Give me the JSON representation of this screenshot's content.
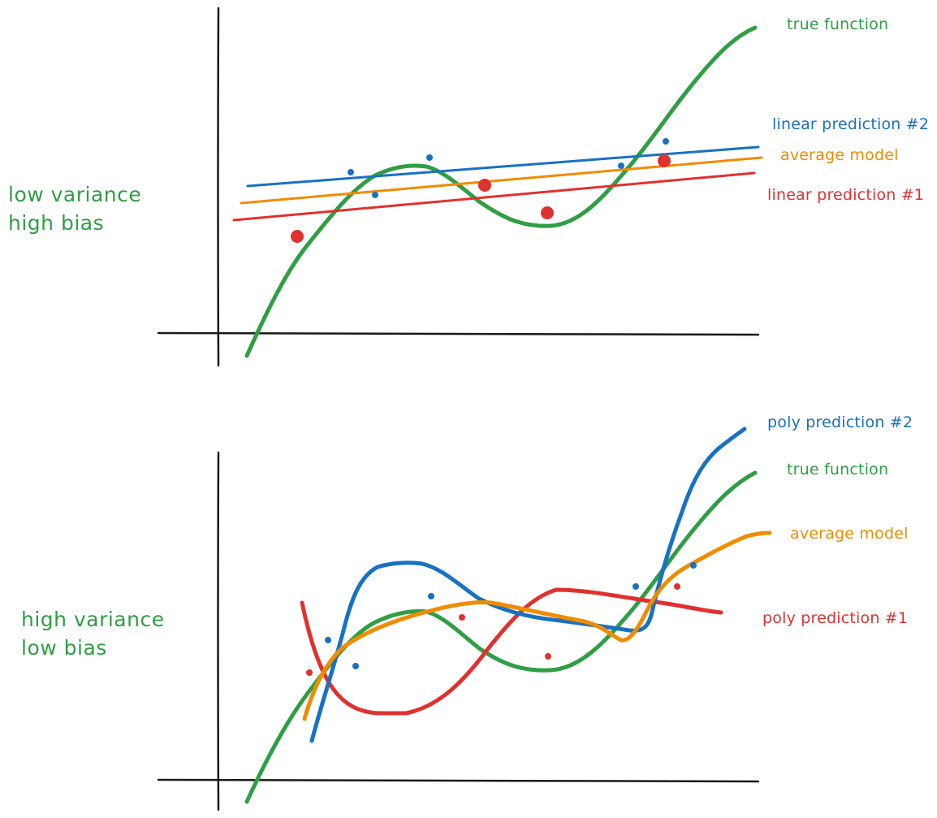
{
  "colors": {
    "axis": "#1a1a1a",
    "green": "#2f9e44",
    "blue": "#1971c2",
    "orange": "#f08c00",
    "red": "#e03131"
  },
  "top": {
    "side_label_line1": "low variance",
    "side_label_line2": "high bias",
    "legend": {
      "true_function": "true function",
      "linear_2": "linear prediction #2",
      "average": "average model",
      "linear_1": "linear prediction #1"
    }
  },
  "bottom": {
    "side_label_line1": "high variance",
    "side_label_line2": "low bias",
    "legend": {
      "poly_2": "poly prediction #2",
      "true_function": "true function",
      "average": "average model",
      "poly_1": "poly prediction #1"
    }
  }
}
